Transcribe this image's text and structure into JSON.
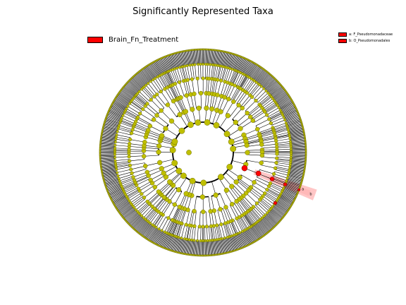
{
  "figure": {
    "title": "Significantly Represented Taxa"
  },
  "legend": {
    "group_label": "Brain_Fn_Treatment",
    "group_color": "#ff0000",
    "clades": [
      {
        "label": "a: F_Pseudomonadaceae",
        "color": "#ff0000"
      },
      {
        "label": "b: O_Pseudomonadales",
        "color": "#ff0000"
      }
    ]
  },
  "highlights": [
    {
      "marker": "a",
      "color": "#ff0000"
    },
    {
      "marker": "b",
      "color": "#ff0000"
    }
  ],
  "colors": {
    "node_default": "#bfbf00",
    "node_enriched": "#ff0000",
    "branch": "#000000",
    "highlight_fill": "#ffb3b3"
  }
}
